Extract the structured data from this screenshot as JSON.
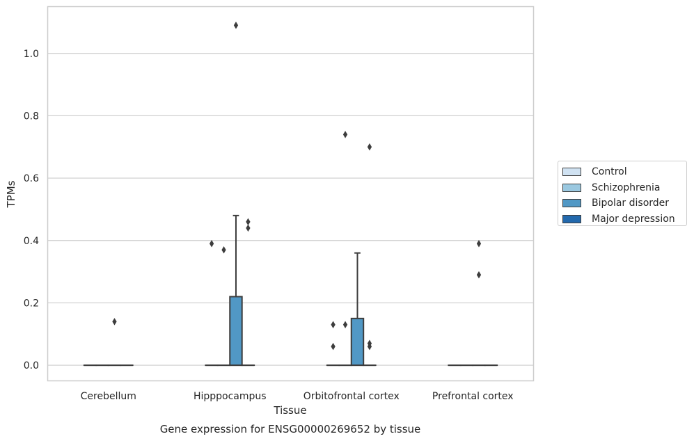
{
  "chart_data": {
    "type": "box",
    "title": "",
    "caption": "Gene expression for ENSG00000269652 by tissue",
    "xlabel": "Tissue",
    "ylabel": "TPMs",
    "ylim": [
      -0.05,
      1.15
    ],
    "yticks": [
      0.0,
      0.2,
      0.4,
      0.6,
      0.8,
      1.0
    ],
    "ytick_labels": [
      "0.0",
      "0.2",
      "0.4",
      "0.6",
      "0.8",
      "1.0"
    ],
    "grid": "horizontal",
    "legend_position": "right",
    "categories": [
      "Cerebellum",
      "Hipppocampus",
      "Orbitofrontal cortex",
      "Prefrontal cortex"
    ],
    "series": [
      {
        "name": "Control",
        "color": "#d0e2f2",
        "boxes": [
          {
            "category": "Cerebellum",
            "q1": 0,
            "median": 0,
            "q3": 0,
            "whisker_low": 0,
            "whisker_high": 0,
            "outliers": []
          },
          {
            "category": "Hipppocampus",
            "q1": 0,
            "median": 0,
            "q3": 0,
            "whisker_low": 0,
            "whisker_high": 0,
            "outliers": [
              0.39
            ]
          },
          {
            "category": "Orbitofrontal cortex",
            "q1": 0,
            "median": 0,
            "q3": 0,
            "whisker_low": 0,
            "whisker_high": 0,
            "outliers": [
              0.13,
              0.06
            ]
          },
          {
            "category": "Prefrontal cortex",
            "q1": 0,
            "median": 0,
            "q3": 0,
            "whisker_low": 0,
            "whisker_high": 0,
            "outliers": []
          }
        ]
      },
      {
        "name": "Schizophrenia",
        "color": "#9ac8e0",
        "boxes": [
          {
            "category": "Cerebellum",
            "q1": 0,
            "median": 0,
            "q3": 0,
            "whisker_low": 0,
            "whisker_high": 0,
            "outliers": []
          },
          {
            "category": "Hipppocampus",
            "q1": 0,
            "median": 0,
            "q3": 0,
            "whisker_low": 0,
            "whisker_high": 0,
            "outliers": [
              0.37
            ]
          },
          {
            "category": "Orbitofrontal cortex",
            "q1": 0,
            "median": 0,
            "q3": 0,
            "whisker_low": 0,
            "whisker_high": 0,
            "outliers": [
              0.74,
              0.13
            ]
          },
          {
            "category": "Prefrontal cortex",
            "q1": 0,
            "median": 0,
            "q3": 0,
            "whisker_low": 0,
            "whisker_high": 0,
            "outliers": []
          }
        ]
      },
      {
        "name": "Bipolar disorder",
        "color": "#5198c5",
        "boxes": [
          {
            "category": "Cerebellum",
            "q1": 0,
            "median": 0,
            "q3": 0,
            "whisker_low": 0,
            "whisker_high": 0,
            "outliers": [
              0.14
            ]
          },
          {
            "category": "Hipppocampus",
            "q1": 0,
            "median": 0,
            "q3": 0.22,
            "whisker_low": 0,
            "whisker_high": 0.48,
            "outliers": [
              1.09
            ]
          },
          {
            "category": "Orbitofrontal cortex",
            "q1": 0,
            "median": 0,
            "q3": 0.15,
            "whisker_low": 0,
            "whisker_high": 0.36,
            "outliers": []
          },
          {
            "category": "Prefrontal cortex",
            "q1": 0,
            "median": 0,
            "q3": 0,
            "whisker_low": 0,
            "whisker_high": 0,
            "outliers": [
              0.39,
              0.29
            ]
          }
        ]
      },
      {
        "name": "Major depression",
        "color": "#2369ad",
        "boxes": [
          {
            "category": "Cerebellum",
            "q1": 0,
            "median": 0,
            "q3": 0,
            "whisker_low": 0,
            "whisker_high": 0,
            "outliers": []
          },
          {
            "category": "Hipppocampus",
            "q1": 0,
            "median": 0,
            "q3": 0,
            "whisker_low": 0,
            "whisker_high": 0,
            "outliers": [
              0.46,
              0.44
            ]
          },
          {
            "category": "Orbitofrontal cortex",
            "q1": 0,
            "median": 0,
            "q3": 0,
            "whisker_low": 0,
            "whisker_high": 0,
            "outliers": [
              0.7,
              0.07,
              0.06
            ]
          },
          {
            "category": "Prefrontal cortex",
            "q1": 0,
            "median": 0,
            "q3": 0,
            "whisker_low": 0,
            "whisker_high": 0,
            "outliers": []
          }
        ]
      }
    ]
  }
}
